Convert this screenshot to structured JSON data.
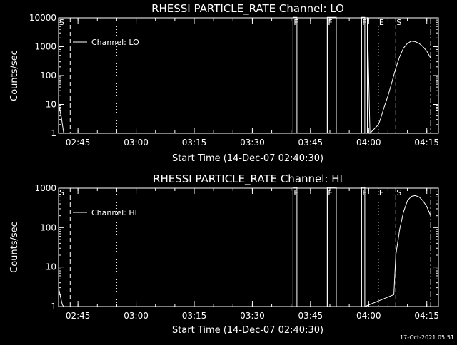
{
  "charts": [
    {
      "title": "RHESSI PARTICLE_RATE Channel: LO",
      "ylabel": "Counts/sec",
      "xlabel": "Start Time (14-Dec-07 02:40:30)",
      "legend": "Channel: LO"
    },
    {
      "title": "RHESSI PARTICLE_RATE Channel: HI",
      "ylabel": "Counts/sec",
      "xlabel": "Start Time (14-Dec-07 02:40:30)",
      "legend": "Channel: HI"
    }
  ],
  "timestamp": "17-Oct-2021 05:51",
  "chart_data": [
    {
      "type": "line",
      "title": "RHESSI PARTICLE_RATE Channel: LO",
      "xlabel": "Start Time (14-Dec-07 02:40:30)",
      "ylabel": "Counts/sec",
      "y_scale": "log",
      "xlim": [
        "02:40",
        "04:18"
      ],
      "ylim": [
        1,
        10000
      ],
      "x_ticks": [
        "02:45",
        "03:00",
        "03:15",
        "03:30",
        "03:45",
        "04:00",
        "04:15"
      ],
      "y_ticks": [
        "1",
        "10",
        "100",
        "1000",
        "10000"
      ],
      "legend_position": "top-left",
      "series": [
        {
          "name": "Channel: LO",
          "x": [
            "02:40",
            "02:40:40",
            "02:41",
            "02:41:20",
            "03:40:30",
            "03:40:30",
            "03:41:30",
            "03:41:30",
            "03:49:20",
            "03:49:20",
            "03:51:40",
            "03:51:40",
            "03:58:10",
            "03:58:10",
            "03:59",
            "03:59",
            "03:59:40",
            "03:59:40",
            "04:00:20",
            "04:02:30",
            "04:03",
            "04:04",
            "04:05",
            "04:06",
            "04:07",
            "04:08",
            "04:09",
            "04:10",
            "04:11",
            "04:12",
            "04:13",
            "04:14",
            "04:15",
            "04:16"
          ],
          "y": [
            10,
            4,
            2,
            1,
            1,
            12000,
            12000,
            1,
            1,
            12000,
            12000,
            1,
            1,
            12000,
            12000,
            1,
            1,
            12000,
            1,
            2,
            3,
            8,
            20,
            60,
            180,
            450,
            900,
            1300,
            1550,
            1500,
            1300,
            1000,
            700,
            400
          ]
        }
      ],
      "markers": [
        {
          "label": "S",
          "time": "02:40"
        },
        {
          "label": "F",
          "time": "03:40:30"
        },
        {
          "label": "F",
          "time": "03:49:20"
        },
        {
          "label": "F",
          "time": "03:58:10"
        },
        {
          "label": "E",
          "time": "04:02:30"
        },
        {
          "label": "S",
          "time": "04:07"
        }
      ]
    },
    {
      "type": "line",
      "title": "RHESSI PARTICLE_RATE Channel: HI",
      "xlabel": "Start Time (14-Dec-07 02:40:30)",
      "ylabel": "Counts/sec",
      "y_scale": "log",
      "xlim": [
        "02:40",
        "04:18"
      ],
      "ylim": [
        1,
        1000
      ],
      "x_ticks": [
        "02:45",
        "03:00",
        "03:15",
        "03:30",
        "03:45",
        "04:00",
        "04:15"
      ],
      "y_ticks": [
        "1",
        "10",
        "100",
        "1000"
      ],
      "legend_position": "top-left",
      "series": [
        {
          "name": "Channel: HI",
          "x": [
            "02:40",
            "02:40:40",
            "02:41",
            "02:41:20",
            "03:40:30",
            "03:40:30",
            "03:41:30",
            "03:41:30",
            "03:49:20",
            "03:49:20",
            "03:51:40",
            "03:51:40",
            "03:58:10",
            "03:58:10",
            "03:59",
            "03:59",
            "04:06:30",
            "04:07",
            "04:08",
            "04:09",
            "04:10",
            "04:11",
            "04:12",
            "04:13",
            "04:14",
            "04:15",
            "04:16"
          ],
          "y": [
            3,
            1.5,
            1.1,
            1,
            1,
            1200,
            1200,
            1,
            1,
            1200,
            1200,
            1,
            1,
            1200,
            1200,
            1,
            2,
            20,
            90,
            250,
            480,
            620,
            650,
            600,
            480,
            340,
            200
          ]
        }
      ],
      "markers": [
        {
          "label": "S",
          "time": "02:40"
        },
        {
          "label": "F",
          "time": "03:40:30"
        },
        {
          "label": "F",
          "time": "03:49:20"
        },
        {
          "label": "F",
          "time": "03:58:10"
        },
        {
          "label": "E",
          "time": "04:02:30"
        },
        {
          "label": "S",
          "time": "04:07"
        }
      ]
    }
  ]
}
